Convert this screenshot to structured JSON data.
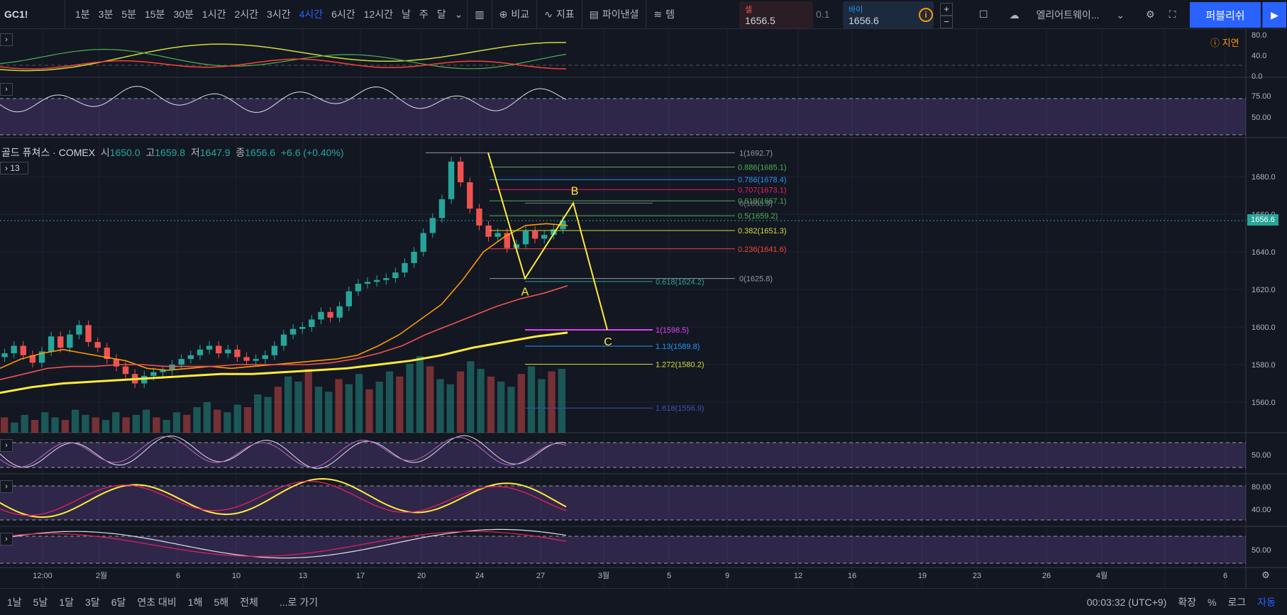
{
  "toolbar": {
    "symbol": "GC1!",
    "intervals": [
      "1분",
      "3분",
      "5분",
      "15분",
      "30분",
      "1시간",
      "2시간",
      "3시간",
      "4시간",
      "6시간",
      "12시간",
      "날",
      "주",
      "달"
    ],
    "active_interval": "4시간",
    "compare_label": "비교",
    "indicators_label": "지표",
    "pine_label": "파이낸셜",
    "templates_label": "템",
    "sell_label": "셀",
    "sell_price": "1656.5",
    "spread": "0.1",
    "buy_label": "바이",
    "buy_price": "1656.6",
    "alert_label": "엘리어트웨이...",
    "publish_label": "퍼블리쉬"
  },
  "legend": {
    "title": "골드 퓨쳐스 · COMEX",
    "open_label": "시",
    "open": "1650.0",
    "high_label": "고",
    "high": "1659.8",
    "low_label": "저",
    "low": "1647.9",
    "close_label": "종",
    "close": "1656.6",
    "change": "+6.6 (+0.40%)",
    "collapsed_count": "13"
  },
  "delay_label": "지연",
  "last_price_tag": "1656.6",
  "bottom": {
    "ranges": [
      "1날",
      "5날",
      "1달",
      "3달",
      "6달",
      "연초 대비",
      "1해",
      "5해",
      "전체"
    ],
    "goto_label": "...로 가기",
    "clock": "00:03:32 (UTC+9)",
    "expand_label": "확장",
    "percent_label": "%",
    "log_label": "로그",
    "auto_label": "자동"
  },
  "chart_data": [
    {
      "type": "line",
      "pane": "main",
      "title": "골드 퓨쳐스 · COMEX",
      "ylim": [
        1545,
        1700
      ],
      "y_ticks": [
        1560.0,
        1580.0,
        1600.0,
        1620.0,
        1640.0,
        1660.0,
        1680.0
      ],
      "x_tick_labels": [
        "12:00",
        "2월",
        "6",
        "10",
        "13",
        "17",
        "20",
        "24",
        "27",
        "3월",
        "5",
        "9",
        "12",
        "16",
        "19",
        "23",
        "26",
        "4월",
        "6"
      ],
      "series": [],
      "close_series": [
        1586,
        1590,
        1585,
        1581,
        1587,
        1595,
        1589,
        1596,
        1601,
        1592,
        1589,
        1583,
        1579,
        1575,
        1570,
        1574,
        1576,
        1577,
        1580,
        1583,
        1585,
        1588,
        1590,
        1586,
        1588,
        1584,
        1582,
        1583,
        1585,
        1590,
        1596,
        1599,
        1600,
        1604,
        1608,
        1605,
        1611,
        1619,
        1623,
        1624,
        1625,
        1626,
        1629,
        1634,
        1640,
        1650,
        1658,
        1668,
        1688,
        1677,
        1663,
        1654,
        1648,
        1650,
        1642,
        1644,
        1651,
        1647,
        1649,
        1652,
        1656.6
      ],
      "ma_series": [
        {
          "color": "#ff9800",
          "values": [
            1578,
            1583,
            1586,
            1588,
            1586,
            1584,
            1582,
            1578,
            1577,
            1578,
            1579,
            1578,
            1579,
            1580,
            1581,
            1582,
            1583,
            1585,
            1590,
            1596,
            1604,
            1612,
            1625,
            1640,
            1648,
            1654,
            1655,
            1654
          ]
        },
        {
          "color": "#ef5350",
          "values": [
            1572,
            1575,
            1578,
            1579,
            1579,
            1580,
            1580,
            1579,
            1579,
            1579,
            1580,
            1580,
            1580,
            1580,
            1581,
            1583,
            1586,
            1590,
            1596,
            1601,
            1606,
            1611,
            1615,
            1618,
            1622
          ]
        },
        {
          "color": "#ffeb3b",
          "values": [
            1565,
            1568,
            1570,
            1571,
            1572,
            1573,
            1574,
            1575,
            1575,
            1576,
            1577,
            1578,
            1580,
            1582,
            1585,
            1589,
            1592,
            1595,
            1597
          ]
        }
      ],
      "volume": [
        6,
        4,
        7,
        5,
        8,
        6,
        5,
        9,
        7,
        6,
        5,
        8,
        6,
        7,
        9,
        6,
        5,
        8,
        7,
        10,
        12,
        9,
        8,
        11,
        10,
        15,
        14,
        18,
        22,
        20,
        25,
        18,
        16,
        21,
        19,
        23,
        17,
        20,
        24,
        22,
        27,
        30,
        26,
        21,
        19,
        24,
        28,
        25,
        22,
        20,
        18,
        23,
        26,
        21,
        24,
        25
      ],
      "annotations": [
        {
          "text": "1(1692.7)",
          "y": 1692.7,
          "color": "#9598a1"
        },
        {
          "text": "0.886(1685.1)",
          "y": 1685.1,
          "color": "#4caf50"
        },
        {
          "text": "0.786(1678.4)",
          "y": 1678.4,
          "color": "#2196f3"
        },
        {
          "text": "0.707(1673.1)",
          "y": 1673.1,
          "color": "#e91e63"
        },
        {
          "text": "0.618(1667.1)",
          "y": 1667.1,
          "color": "#4caf50"
        },
        {
          "text": "0(1665.9)",
          "y": 1665.9,
          "color": "#787b86"
        },
        {
          "text": "0.5(1659.2)",
          "y": 1659.2,
          "color": "#4caf50"
        },
        {
          "text": "0.382(1651.3)",
          "y": 1651.3,
          "color": "#cddc39"
        },
        {
          "text": "0.236(1641.6)",
          "y": 1641.6,
          "color": "#f44336"
        },
        {
          "text": "0(1625.8)",
          "y": 1625.8,
          "color": "#9598a1"
        },
        {
          "text": "0.618(1624.2)",
          "y": 1624.2,
          "color": "#26a69a"
        },
        {
          "text": "1(1598.5)",
          "y": 1598.5,
          "color": "#e040fb"
        },
        {
          "text": "1.13(1589.8)",
          "y": 1589.8,
          "color": "#2196f3"
        },
        {
          "text": "1.272(1580.2)",
          "y": 1580.2,
          "color": "#cddc39"
        },
        {
          "text": "1.618(1556.9)",
          "y": 1556.9,
          "color": "#3f51b5"
        }
      ],
      "abc_points": [
        {
          "label": "A",
          "y": 1625.8
        },
        {
          "label": "B",
          "y": 1665.9
        },
        {
          "label": "C",
          "y": 1598.5
        }
      ]
    },
    {
      "type": "line",
      "pane": "dmi",
      "y_ticks": [
        0.0,
        40.0,
        80.0
      ],
      "ylim": [
        0,
        85
      ],
      "series_colors": [
        "#cddc39",
        "#4caf50",
        "#f44336"
      ]
    },
    {
      "type": "line",
      "pane": "rsi",
      "y_ticks": [
        50.0,
        75.0
      ],
      "ylim": [
        40,
        85
      ],
      "series_colors": [
        "#e0e0e0"
      ]
    },
    {
      "type": "line",
      "pane": "osc1",
      "y_ticks": [
        50.0
      ],
      "ylim": [
        0,
        100
      ],
      "series_colors": [
        "#e0e0e0",
        "#ba68c8"
      ]
    },
    {
      "type": "line",
      "pane": "stoch",
      "y_ticks": [
        40.0,
        80.0
      ],
      "ylim": [
        0,
        100
      ],
      "series_colors": [
        "#ffeb3b",
        "#e91e63"
      ]
    },
    {
      "type": "line",
      "pane": "osc2",
      "y_ticks": [
        50.0
      ],
      "ylim": [
        0,
        100
      ],
      "series_colors": [
        "#e0e0e0",
        "#e91e63"
      ]
    }
  ]
}
